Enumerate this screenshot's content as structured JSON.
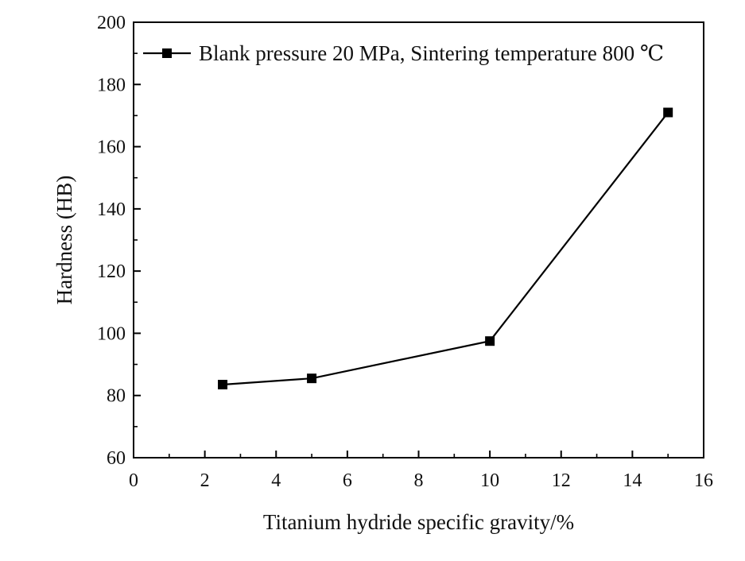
{
  "chart_data": {
    "type": "line",
    "xlabel": "Titanium hydride specific gravity/%",
    "ylabel": "Hardness (HB)",
    "xlim": [
      0,
      16
    ],
    "ylim": [
      60,
      200
    ],
    "x_major_ticks": [
      0,
      2,
      4,
      6,
      8,
      10,
      12,
      14,
      16
    ],
    "x_minor_ticks": [
      1,
      3,
      5,
      7,
      9,
      11,
      13,
      15
    ],
    "y_major_ticks": [
      60,
      80,
      100,
      120,
      140,
      160,
      180,
      200
    ],
    "y_minor_ticks": [
      70,
      90,
      110,
      130,
      150,
      170,
      190
    ],
    "grid": false,
    "legend_position": "top",
    "series": [
      {
        "name": "Blank pressure 20 MPa, Sintering temperature 800 ℃",
        "marker": "square",
        "color": "#000000",
        "x": [
          2.5,
          5,
          10,
          15
        ],
        "y": [
          83.5,
          85.5,
          97.5,
          171
        ]
      }
    ]
  }
}
